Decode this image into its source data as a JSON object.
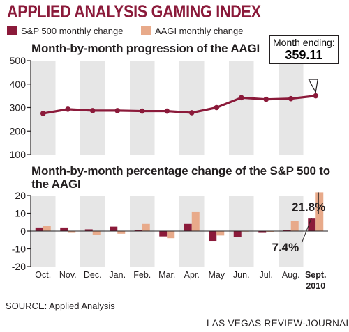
{
  "title": "APPLIED ANALYSIS GAMING INDEX",
  "colors": {
    "sp500": "#8b1a3a",
    "aagi": "#e8aa8a",
    "panel": "#e6e6e6",
    "line": "#8b1a3a"
  },
  "legend": [
    {
      "label": "S&P 500 monthly change",
      "color": "#8b1a3a"
    },
    {
      "label": "AAGI monthly change",
      "color": "#e8aa8a"
    }
  ],
  "chart_data": [
    {
      "type": "line",
      "title": "Month-by-month progression of the AAGI",
      "categories": [
        "Oct.",
        "Nov.",
        "Dec.",
        "Jan.",
        "Feb.",
        "Mar.",
        "Apr.",
        "May",
        "Jun.",
        "Jul.",
        "Aug.",
        "Sept."
      ],
      "series": [
        {
          "values": [
            275,
            293,
            287,
            287,
            285,
            285,
            278,
            300,
            342,
            335,
            338,
            350
          ]
        }
      ],
      "ylim": [
        100,
        500
      ],
      "yticks": [
        100,
        200,
        300,
        400,
        500
      ],
      "grid": false,
      "annotation": {
        "label": "Month ending:",
        "value": "359.11"
      }
    },
    {
      "type": "bar",
      "title": "Month-by-month percentage change of the S&P 500 to the AAGI",
      "categories": [
        "Oct.",
        "Nov.",
        "Dec.",
        "Jan.",
        "Feb.",
        "Mar.",
        "Apr.",
        "May",
        "Jun.",
        "Jul.",
        "Aug.",
        "Sept."
      ],
      "series": [
        {
          "name": "S&P 500 monthly change",
          "values": [
            2,
            2,
            1,
            2.5,
            0.5,
            -3,
            4,
            -5.5,
            -3.5,
            -1,
            0.5,
            7.4
          ]
        },
        {
          "name": "AAGI monthly change",
          "values": [
            3,
            -1,
            -2,
            -1.5,
            4,
            -4,
            11,
            -2.5,
            0,
            -0.5,
            5.5,
            21.8
          ]
        }
      ],
      "ylim": [
        -20,
        20
      ],
      "yticks": [
        -20,
        -10,
        0,
        10,
        20
      ],
      "grid": false,
      "annotations": {
        "sp500_last": "7.4%",
        "aagi_last": "21.8%"
      }
    }
  ],
  "xaxis": {
    "labels": [
      "Oct.",
      "Nov.",
      "Dec.",
      "Jan.",
      "Feb.",
      "Mar.",
      "Apr.",
      "May",
      "Jun.",
      "Jul.",
      "Aug.",
      "Sept."
    ],
    "year_label": "2010"
  },
  "source": "SOURCE: Applied Analysis",
  "credit": "LAS VEGAS REVIEW-JOURNAL"
}
